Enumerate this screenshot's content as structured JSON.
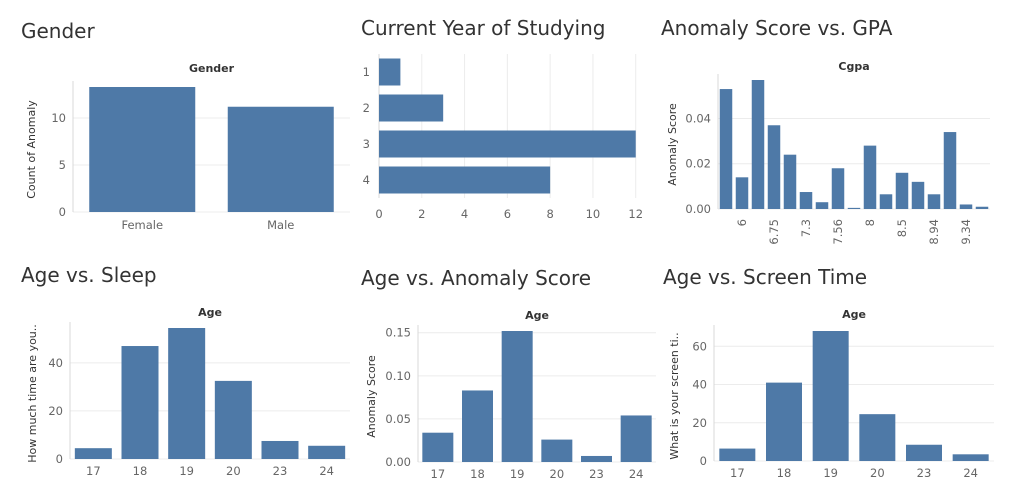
{
  "bar_color": "#4e79a7",
  "titles": {
    "gender": "Gender",
    "year": "Current Year of Studying",
    "gpa": "Anomaly Score vs. GPA",
    "sleep": "Age vs. Sleep",
    "anomaly": "Age vs. Anomaly Score",
    "screen": "Age vs. Screen Time"
  },
  "chart_data": [
    {
      "id": "gender",
      "type": "bar",
      "title": "Gender",
      "xlabel": "Gender",
      "ylabel": "Count of Anomaly",
      "categories": [
        "Female",
        "Male"
      ],
      "values": [
        13.3,
        11.2
      ],
      "ylim": [
        0,
        13.3
      ],
      "yticks": [
        0,
        5,
        10
      ],
      "ytick_labels": [
        "0",
        "5",
        "10"
      ],
      "grid": true
    },
    {
      "id": "year",
      "type": "bar",
      "orientation": "horizontal",
      "title": "Current Year of Studying",
      "categories": [
        "1",
        "2",
        "3",
        "4"
      ],
      "values": [
        1,
        3,
        12,
        8
      ],
      "xlim": [
        0,
        12.2
      ],
      "xticks": [
        0,
        2,
        4,
        6,
        8,
        10,
        12
      ],
      "xtick_labels": [
        "0",
        "2",
        "4",
        "6",
        "8",
        "10",
        "12"
      ],
      "grid": true
    },
    {
      "id": "gpa",
      "type": "bar",
      "title": "Anomaly Score vs. GPA",
      "xlabel": "Cgpa",
      "ylabel": "Anomaly Score",
      "categories": [
        "",
        "6",
        "",
        "6.75",
        "",
        "7.3",
        "",
        "7.56",
        "",
        "8",
        "",
        "8.5",
        "",
        "8.94",
        "",
        "9.34",
        ""
      ],
      "values": [
        0.053,
        0.014,
        0.057,
        0.037,
        0.024,
        0.0075,
        0.003,
        0.018,
        0.0005,
        0.028,
        0.0065,
        0.016,
        0.012,
        0.0065,
        0.034,
        0.002,
        0.001
      ],
      "ylim": [
        0,
        0.057
      ],
      "yticks": [
        0,
        0.02,
        0.04
      ],
      "ytick_labels": [
        "0.00",
        "0.02",
        "0.04"
      ],
      "grid": true
    },
    {
      "id": "sleep",
      "type": "bar",
      "title": "Age vs. Sleep",
      "xlabel": "Age",
      "ylabel": "How much time are you..",
      "categories": [
        "17",
        "18",
        "19",
        "20",
        "23",
        "24"
      ],
      "values": [
        4.5,
        47,
        54.5,
        32.5,
        7.5,
        5.5
      ],
      "ylim": [
        0,
        54.5
      ],
      "yticks": [
        0,
        20,
        40
      ],
      "ytick_labels": [
        "0",
        "20",
        "40"
      ],
      "grid": true
    },
    {
      "id": "anomaly",
      "type": "bar",
      "title": "Age vs. Anomaly Score",
      "xlabel": "Age",
      "ylabel": "Anomaly Score",
      "categories": [
        "17",
        "18",
        "19",
        "20",
        "23",
        "24"
      ],
      "values": [
        0.034,
        0.083,
        0.152,
        0.026,
        0.007,
        0.054
      ],
      "ylim": [
        0,
        0.152
      ],
      "yticks": [
        0,
        0.05,
        0.1,
        0.15
      ],
      "ytick_labels": [
        "0.00",
        "0.05",
        "0.10",
        "0.15"
      ],
      "grid": true
    },
    {
      "id": "screen",
      "type": "bar",
      "title": "Age vs. Screen Time",
      "xlabel": "Age",
      "ylabel": "What is your screen ti..",
      "categories": [
        "17",
        "18",
        "19",
        "20",
        "23",
        "24"
      ],
      "values": [
        6.5,
        41,
        68,
        24.5,
        8.5,
        3.5
      ],
      "ylim": [
        0,
        68
      ],
      "yticks": [
        0,
        20,
        40,
        60
      ],
      "ytick_labels": [
        "0",
        "20",
        "40",
        "60"
      ],
      "grid": true
    }
  ]
}
